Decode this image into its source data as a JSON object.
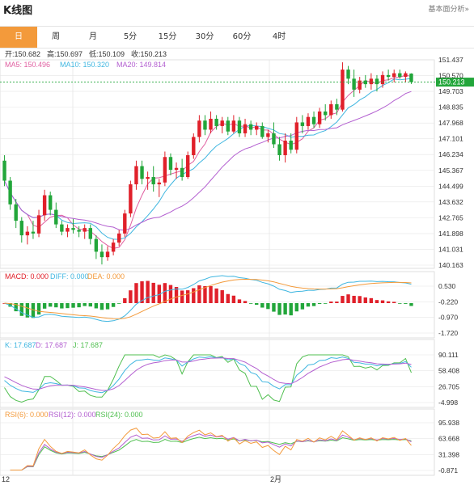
{
  "header": {
    "title": "K线图",
    "link": "基本面分析»"
  },
  "tabs": [
    {
      "label": "日",
      "active": true
    },
    {
      "label": "周",
      "active": false
    },
    {
      "label": "月",
      "active": false
    },
    {
      "label": "5分",
      "active": false
    },
    {
      "label": "15分",
      "active": false
    },
    {
      "label": "30分",
      "active": false
    },
    {
      "label": "60分",
      "active": false
    },
    {
      "label": "4时",
      "active": false
    }
  ],
  "ohlc": {
    "open_label": "开:",
    "open": "150.682",
    "high_label": "高:",
    "high": "150.697",
    "low_label": "低:",
    "low": "150.109",
    "close_label": "收:",
    "close": "150.213"
  },
  "ma": [
    {
      "label": "MA5: 150.496",
      "color": "#e05fa0"
    },
    {
      "label": "MA10: 150.320",
      "color": "#3fb6e0"
    },
    {
      "label": "MA20: 149.814",
      "color": "#b35fd0"
    }
  ],
  "macd_legend": [
    {
      "label": "MACD: 0.000",
      "color": "#e0202a"
    },
    {
      "label": "DIFF: 0.000",
      "color": "#3fb6e0"
    },
    {
      "label": "DEA: 0.000",
      "color": "#f39a3b"
    }
  ],
  "kdj_legend": [
    {
      "label": "K: 17.687",
      "color": "#3fb6e0"
    },
    {
      "label": "D: 17.687",
      "color": "#b35fd0"
    },
    {
      "label": "J: 17.687",
      "color": "#4fbf4f"
    }
  ],
  "rsi_legend": [
    {
      "label": "RSI(6): 0.000",
      "color": "#f39a3b"
    },
    {
      "label": "RSI(12): 0.000",
      "color": "#b35fd0"
    },
    {
      "label": "RSI(24): 0.000",
      "color": "#4fbf4f"
    }
  ],
  "colors": {
    "up": "#e0202a",
    "down": "#22a63a",
    "grid": "#e6e6e6",
    "axis_text": "#333"
  },
  "chart_data": [
    {
      "type": "candlestick",
      "title": "",
      "ylim": [
        140.163,
        151.437
      ],
      "yticks": [
        "151.437",
        "150.570",
        "149.703",
        "148.835",
        "147.968",
        "147.101",
        "146.234",
        "145.367",
        "144.499",
        "143.632",
        "142.765",
        "141.898",
        "141.031",
        "140.163"
      ],
      "xticks": [
        "12",
        "2月"
      ],
      "last_price": "150.213",
      "candles": [
        [
          145.9,
          146.2,
          144.5,
          144.8
        ],
        [
          144.8,
          145.0,
          143.2,
          143.5
        ],
        [
          143.5,
          143.8,
          142.2,
          142.6
        ],
        [
          142.6,
          142.8,
          141.4,
          141.8
        ],
        [
          141.8,
          142.3,
          141.3,
          142.0
        ],
        [
          142.0,
          142.6,
          141.6,
          141.9
        ],
        [
          141.9,
          143.2,
          141.7,
          142.9
        ],
        [
          142.9,
          144.3,
          142.6,
          144.0
        ],
        [
          144.0,
          144.2,
          142.9,
          143.2
        ],
        [
          143.2,
          143.6,
          142.2,
          142.4
        ],
        [
          142.4,
          142.6,
          141.8,
          142.0
        ],
        [
          142.0,
          142.4,
          141.7,
          142.2
        ],
        [
          142.2,
          142.7,
          141.9,
          142.1
        ],
        [
          142.1,
          142.3,
          141.7,
          142.0
        ],
        [
          142.0,
          142.4,
          141.6,
          142.2
        ],
        [
          142.2,
          142.4,
          141.3,
          141.6
        ],
        [
          141.6,
          141.8,
          140.5,
          140.9
        ],
        [
          140.9,
          141.3,
          140.2,
          140.6
        ],
        [
          140.6,
          141.2,
          140.4,
          140.9
        ],
        [
          140.9,
          141.6,
          140.7,
          141.4
        ],
        [
          141.4,
          142.1,
          141.2,
          141.9
        ],
        [
          141.9,
          143.2,
          141.7,
          143.0
        ],
        [
          143.0,
          144.8,
          142.8,
          144.6
        ],
        [
          144.6,
          145.9,
          144.3,
          145.6
        ],
        [
          145.6,
          145.9,
          144.6,
          144.9
        ],
        [
          144.9,
          145.3,
          144.3,
          145.0
        ],
        [
          145.0,
          145.6,
          144.2,
          144.6
        ],
        [
          144.6,
          144.9,
          143.9,
          144.7
        ],
        [
          144.7,
          146.4,
          144.5,
          146.1
        ],
        [
          146.1,
          146.3,
          145.1,
          145.4
        ],
        [
          145.4,
          145.8,
          144.9,
          145.5
        ],
        [
          145.5,
          146.0,
          144.8,
          145.0
        ],
        [
          145.0,
          146.4,
          144.9,
          146.2
        ],
        [
          146.2,
          147.4,
          146.0,
          147.2
        ],
        [
          147.2,
          148.4,
          146.9,
          148.1
        ],
        [
          148.1,
          148.4,
          147.3,
          147.6
        ],
        [
          147.6,
          148.6,
          147.4,
          148.2
        ],
        [
          148.2,
          148.4,
          147.6,
          147.8
        ],
        [
          147.8,
          148.3,
          147.4,
          148.1
        ],
        [
          148.1,
          148.3,
          147.3,
          147.5
        ],
        [
          147.5,
          148.4,
          147.4,
          148.1
        ],
        [
          148.1,
          148.3,
          147.2,
          147.4
        ],
        [
          147.4,
          148.2,
          147.2,
          147.9
        ],
        [
          147.9,
          148.1,
          147.3,
          147.6
        ],
        [
          147.6,
          148.0,
          147.3,
          147.8
        ],
        [
          147.8,
          148.0,
          147.1,
          147.2
        ],
        [
          147.2,
          147.6,
          146.9,
          147.4
        ],
        [
          147.4,
          148.0,
          146.6,
          146.8
        ],
        [
          146.8,
          147.2,
          145.9,
          146.2
        ],
        [
          146.2,
          147.4,
          145.8,
          147.0
        ],
        [
          147.0,
          147.4,
          146.3,
          146.5
        ],
        [
          146.5,
          148.3,
          146.3,
          148.0
        ],
        [
          148.0,
          148.4,
          147.4,
          147.8
        ],
        [
          147.8,
          148.5,
          147.6,
          148.3
        ],
        [
          148.3,
          148.6,
          147.7,
          147.9
        ],
        [
          147.9,
          148.8,
          147.7,
          148.6
        ],
        [
          148.6,
          149.0,
          148.1,
          148.4
        ],
        [
          148.4,
          149.2,
          148.2,
          149.0
        ],
        [
          149.0,
          149.3,
          148.4,
          148.7
        ],
        [
          148.7,
          151.3,
          148.6,
          150.9
        ],
        [
          150.9,
          151.1,
          150.1,
          150.4
        ],
        [
          150.4,
          150.9,
          149.4,
          149.8
        ],
        [
          149.8,
          150.5,
          149.6,
          150.3
        ],
        [
          150.3,
          150.6,
          149.9,
          150.1
        ],
        [
          150.1,
          150.7,
          149.8,
          150.4
        ],
        [
          150.4,
          150.6,
          149.7,
          150.1
        ],
        [
          150.1,
          150.8,
          149.9,
          150.6
        ],
        [
          150.6,
          150.9,
          150.3,
          150.5
        ],
        [
          150.5,
          150.9,
          150.2,
          150.7
        ],
        [
          150.7,
          150.9,
          150.4,
          150.5
        ],
        [
          150.5,
          150.8,
          150.2,
          150.7
        ],
        [
          150.682,
          150.697,
          150.109,
          150.213
        ]
      ]
    },
    {
      "type": "bar",
      "title": "",
      "yticks": [
        "0.530",
        "-0.220",
        "-0.970",
        "-1.720"
      ],
      "ylim": [
        -1.72,
        0.53
      ]
    },
    {
      "type": "line",
      "title": "",
      "yticks": [
        "90.111",
        "58.408",
        "26.705",
        "-4.998"
      ],
      "ylim": [
        -4.998,
        90.111
      ]
    },
    {
      "type": "line",
      "title": "",
      "yticks": [
        "95.938",
        "63.668",
        "31.398",
        "-0.871"
      ],
      "ylim": [
        -0.871,
        95.938
      ]
    }
  ]
}
